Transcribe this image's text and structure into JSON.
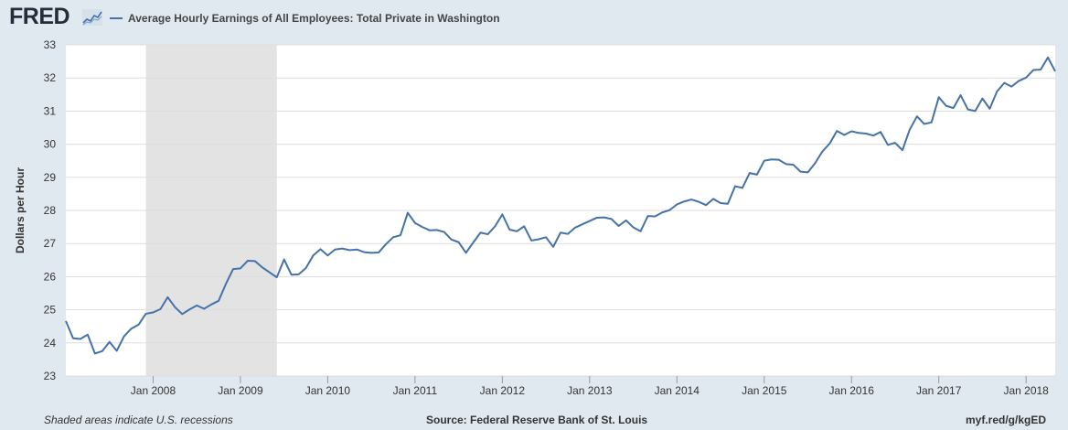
{
  "header": {
    "logo_text": "FRED",
    "legend_label": "Average Hourly Earnings of All Employees: Total Private in Washington"
  },
  "footer": {
    "recession_note": "Shaded areas indicate U.S. recessions",
    "source": "Source: Federal Reserve Bank of St. Louis",
    "link": "myf.red/g/kgED"
  },
  "colors": {
    "series": "#4572a7",
    "recession": "#e3e3e3",
    "grid": "#dddddd",
    "background": "#e1e9f0",
    "plot": "#ffffff"
  },
  "chart_data": {
    "type": "line",
    "ylabel": "Dollars per Hour",
    "ylim": [
      23,
      33
    ],
    "yticks": [
      23,
      24,
      25,
      26,
      27,
      28,
      29,
      30,
      31,
      32,
      33
    ],
    "x_start": "2007-01",
    "x_end": "2018-05",
    "xticks": [
      {
        "label": "Jan 2008",
        "date": "2008-01"
      },
      {
        "label": "Jan 2009",
        "date": "2009-01"
      },
      {
        "label": "Jan 2010",
        "date": "2010-01"
      },
      {
        "label": "Jan 2011",
        "date": "2011-01"
      },
      {
        "label": "Jan 2012",
        "date": "2012-01"
      },
      {
        "label": "Jan 2013",
        "date": "2013-01"
      },
      {
        "label": "Jan 2014",
        "date": "2014-01"
      },
      {
        "label": "Jan 2015",
        "date": "2015-01"
      },
      {
        "label": "Jan 2016",
        "date": "2016-01"
      },
      {
        "label": "Jan 2017",
        "date": "2017-01"
      },
      {
        "label": "Jan 2018",
        "date": "2018-01"
      }
    ],
    "recessions": [
      {
        "start": "2007-12",
        "end": "2009-06"
      }
    ],
    "grid": true,
    "series": [
      {
        "start": "2007-01",
        "frequency": "monthly",
        "values": [
          24.66,
          24.14,
          24.12,
          24.25,
          23.68,
          23.75,
          24.03,
          23.76,
          24.2,
          24.43,
          24.55,
          24.88,
          24.92,
          25.02,
          25.38,
          25.08,
          24.87,
          25.01,
          25.13,
          25.03,
          25.16,
          25.27,
          25.78,
          26.23,
          26.25,
          26.48,
          26.47,
          26.28,
          26.13,
          25.98,
          26.52,
          26.06,
          26.07,
          26.26,
          26.64,
          26.83,
          26.64,
          26.82,
          26.85,
          26.8,
          26.82,
          26.74,
          26.72,
          26.73,
          26.98,
          27.19,
          27.25,
          27.93,
          27.62,
          27.5,
          27.4,
          27.41,
          27.35,
          27.12,
          27.04,
          26.72,
          27.03,
          27.33,
          27.28,
          27.52,
          27.88,
          27.42,
          27.37,
          27.52,
          27.09,
          27.13,
          27.19,
          26.9,
          27.33,
          27.29,
          27.48,
          27.58,
          27.68,
          27.78,
          27.79,
          27.74,
          27.53,
          27.7,
          27.49,
          27.37,
          27.83,
          27.82,
          27.94,
          28.01,
          28.18,
          28.27,
          28.33,
          28.26,
          28.16,
          28.35,
          28.22,
          28.2,
          28.73,
          28.68,
          29.13,
          29.08,
          29.5,
          29.54,
          29.53,
          29.4,
          29.38,
          29.17,
          29.15,
          29.43,
          29.78,
          30.02,
          30.4,
          30.28,
          30.39,
          30.34,
          30.32,
          30.26,
          30.37,
          29.98,
          30.04,
          29.82,
          30.44,
          30.84,
          30.61,
          30.66,
          31.42,
          31.16,
          31.09,
          31.48,
          31.05,
          31.0,
          31.38,
          31.07,
          31.59,
          31.85,
          31.74,
          31.91,
          32.01,
          32.24,
          32.25,
          32.62,
          32.2
        ]
      }
    ]
  }
}
